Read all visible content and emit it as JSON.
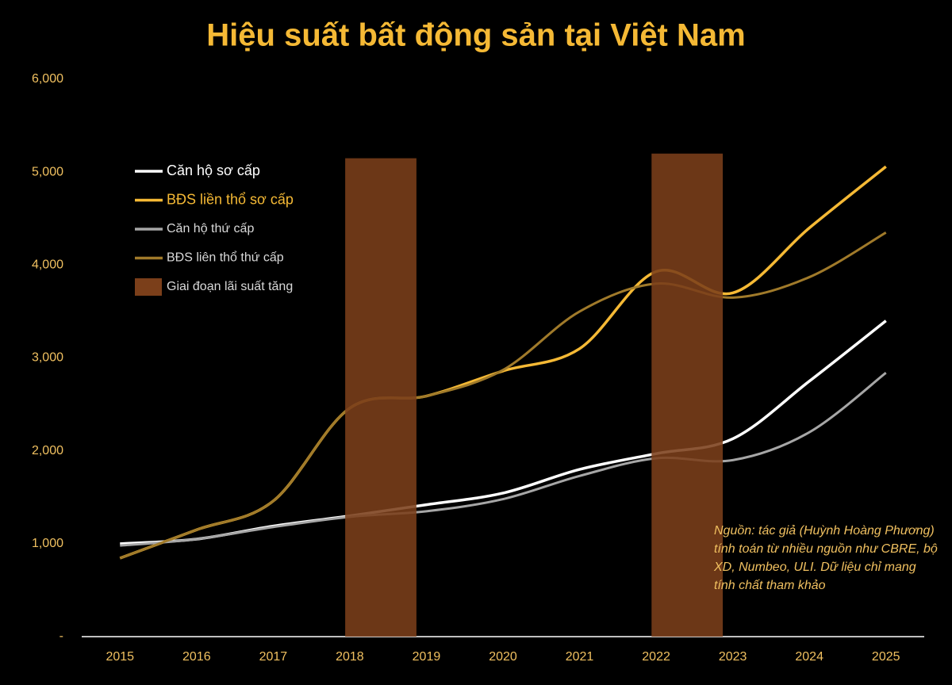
{
  "chart_data": {
    "type": "line",
    "title": "Hiệu suất bất động sản tại Việt Nam",
    "categories": [
      "2015",
      "2016",
      "2017",
      "2018",
      "2019",
      "2020",
      "2021",
      "2022",
      "2023",
      "2024",
      "2025"
    ],
    "series": [
      {
        "name": "Căn hộ sơ cấp",
        "color": "#ffffff",
        "values": [
          1000,
          1050,
          1190,
          1300,
          1420,
          1545,
          1800,
          1970,
          2130,
          2750,
          3400
        ]
      },
      {
        "name": "BĐS liền thổ sơ cấp",
        "color": "#f5b935",
        "values": [
          845,
          1150,
          1460,
          2460,
          2590,
          2860,
          3100,
          3930,
          3700,
          4400,
          5060
        ]
      },
      {
        "name": "Căn hộ thứ cấp",
        "color": "#a6a6a6",
        "values": [
          980,
          1050,
          1180,
          1290,
          1350,
          1480,
          1730,
          1920,
          1900,
          2200,
          2840
        ]
      },
      {
        "name": "BĐS liên thổ thứ cấp",
        "color": "#a07a2a",
        "values": [
          845,
          1150,
          1460,
          2460,
          2590,
          2870,
          3500,
          3800,
          3650,
          3870,
          4350
        ]
      },
      {
        "name": "Giai đoạn lãi suất tăng",
        "color": "#7b3f1a",
        "type": "bar",
        "values": [
          null,
          null,
          null,
          5150,
          null,
          null,
          null,
          5200,
          null,
          null,
          null
        ]
      }
    ],
    "ylim": [
      0,
      6000
    ],
    "yticks": [
      {
        "value": 0,
        "label": "-"
      },
      {
        "value": 1000,
        "label": "1,000"
      },
      {
        "value": 2000,
        "label": "2,000"
      },
      {
        "value": 3000,
        "label": "3,000"
      },
      {
        "value": 4000,
        "label": "4,000"
      },
      {
        "value": 5000,
        "label": "5,000"
      },
      {
        "value": 6000,
        "label": "6,000"
      }
    ],
    "annotation": "Nguồn: tác giả (Huỳnh Hoàng Phương) tính toán từ nhiều nguồn như CBRE, bộ XD, Numbeo, ULI. Dữ liệu chỉ mang tính chất tham khảo"
  }
}
